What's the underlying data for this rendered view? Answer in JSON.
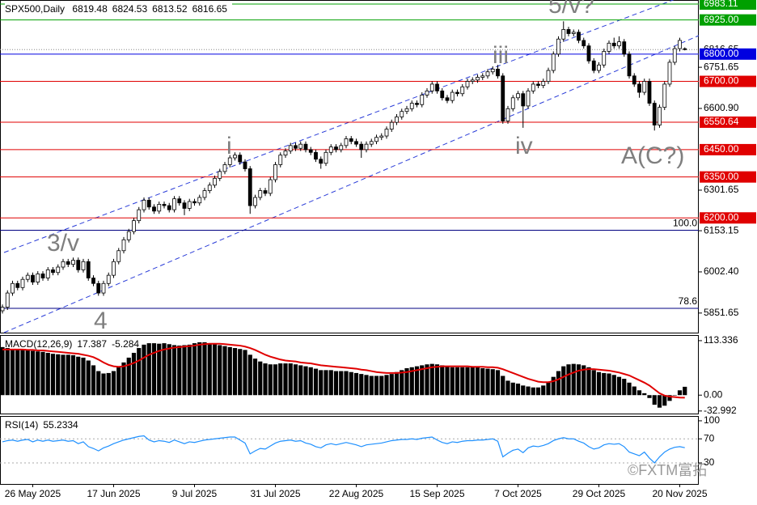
{
  "chart_data": {
    "type": "candlestick",
    "symbol": "SPX500,Daily",
    "up_color": "#ffffff",
    "down_color": "#000000",
    "outline_color": "#000000",
    "categories": [
      null,
      null,
      null,
      null,
      null,
      null,
      "26 May 2025",
      null,
      null,
      null,
      null,
      null,
      null,
      null,
      null,
      null,
      null,
      null,
      null,
      null,
      null,
      null,
      "17 Jun 2025",
      null,
      null,
      null,
      null,
      null,
      null,
      null,
      null,
      null,
      null,
      null,
      null,
      null,
      null,
      null,
      "9 Jul 2025",
      null,
      null,
      null,
      null,
      null,
      null,
      null,
      null,
      null,
      null,
      null,
      null,
      null,
      null,
      null,
      "31 Jul 2025",
      null,
      null,
      null,
      null,
      null,
      null,
      null,
      null,
      null,
      null,
      null,
      null,
      null,
      null,
      null,
      "22 Aug 2025",
      null,
      null,
      null,
      null,
      null,
      null,
      null,
      null,
      null,
      null,
      null,
      null,
      null,
      null,
      null,
      "15 Sep 2025",
      null,
      null,
      null,
      null,
      null,
      null,
      null,
      null,
      null,
      null,
      null,
      null,
      null,
      null,
      null,
      "7 Oct 2025",
      null,
      null,
      null,
      null,
      null,
      null,
      null,
      null,
      null,
      null,
      null,
      null,
      null,
      null,
      null,
      "29 Oct 2025",
      null,
      null,
      null,
      null,
      null,
      null,
      null,
      null,
      null,
      null,
      null,
      null,
      null,
      null,
      null,
      "20 Nov 2025",
      null
    ],
    "open": [
      5860,
      5873,
      5925,
      5960,
      5945,
      5975,
      5990,
      5965,
      5995,
      5980,
      6010,
      6000,
      6020,
      6040,
      6030,
      6045,
      6010,
      6040,
      5980,
      5960,
      5925,
      5960,
      5990,
      6040,
      6080,
      6120,
      6150,
      6190,
      6230,
      6265,
      6240,
      6225,
      6250,
      6245,
      6230,
      6270,
      6255,
      6235,
      6260,
      6255,
      6275,
      6300,
      6320,
      6345,
      6370,
      6395,
      6420,
      6430,
      6405,
      6380,
      6245,
      6275,
      6300,
      6290,
      6340,
      6395,
      6430,
      6445,
      6465,
      6455,
      6470,
      6450,
      6440,
      6415,
      6400,
      6440,
      6460,
      6450,
      6465,
      6490,
      6480,
      6470,
      6450,
      6470,
      6480,
      6495,
      6500,
      6525,
      6550,
      6570,
      6590,
      6600,
      6620,
      6615,
      6650,
      6665,
      6690,
      6665,
      6640,
      6630,
      6660,
      6655,
      6680,
      6700,
      6705,
      6715,
      6720,
      6735,
      6745,
      6720,
      6555,
      6600,
      6640,
      6655,
      6610,
      6665,
      6690,
      6685,
      6700,
      6740,
      6800,
      6855,
      6890,
      6875,
      6880,
      6850,
      6830,
      6775,
      6740,
      6760,
      6810,
      6840,
      6830,
      6845,
      6800,
      6720,
      6690,
      6660,
      6700,
      6620,
      6540,
      6605,
      6690,
      6770,
      6820,
      6819.48
    ],
    "high": [
      5883,
      5935,
      5970,
      5970,
      5985,
      6000,
      6000,
      6005,
      6005,
      6020,
      6020,
      6030,
      6050,
      6050,
      6055,
      6055,
      6050,
      6050,
      5990,
      5970,
      5970,
      6000,
      6050,
      6090,
      6130,
      6160,
      6200,
      6240,
      6275,
      6275,
      6250,
      6260,
      6260,
      6255,
      6280,
      6280,
      6265,
      6270,
      6270,
      6285,
      6310,
      6330,
      6355,
      6380,
      6405,
      6430,
      6440,
      6440,
      6415,
      6390,
      6285,
      6310,
      6310,
      6350,
      6405,
      6440,
      6455,
      6475,
      6475,
      6480,
      6480,
      6460,
      6450,
      6425,
      6450,
      6470,
      6470,
      6475,
      6500,
      6500,
      6490,
      6480,
      6480,
      6490,
      6505,
      6510,
      6535,
      6560,
      6580,
      6600,
      6610,
      6630,
      6630,
      6660,
      6675,
      6700,
      6700,
      6675,
      6650,
      6670,
      6670,
      6690,
      6710,
      6715,
      6725,
      6730,
      6745,
      6755,
      6760,
      6730,
      6610,
      6650,
      6665,
      6665,
      6675,
      6700,
      6700,
      6710,
      6750,
      6810,
      6865,
      6920,
      6900,
      6890,
      6890,
      6860,
      6840,
      6785,
      6770,
      6820,
      6850,
      6860,
      6865,
      6855,
      6810,
      6730,
      6700,
      6710,
      6710,
      6630,
      6615,
      6700,
      6780,
      6830,
      6860,
      6824.53
    ],
    "low": [
      5850,
      5863,
      5915,
      5935,
      5935,
      5965,
      5955,
      5955,
      5970,
      5970,
      5990,
      5990,
      6010,
      6020,
      6020,
      6000,
      6000,
      5970,
      5950,
      5915,
      5915,
      5950,
      5980,
      6030,
      6070,
      6110,
      6140,
      6180,
      6220,
      6230,
      6215,
      6215,
      6235,
      6220,
      6220,
      6245,
      6210,
      6225,
      6245,
      6245,
      6265,
      6290,
      6310,
      6335,
      6360,
      6385,
      6410,
      6395,
      6370,
      6215,
      6235,
      6265,
      6280,
      6280,
      6330,
      6385,
      6420,
      6435,
      6445,
      6445,
      6440,
      6430,
      6405,
      6380,
      6390,
      6430,
      6440,
      6440,
      6455,
      6470,
      6460,
      6420,
      6440,
      6460,
      6470,
      6485,
      6490,
      6515,
      6540,
      6560,
      6580,
      6590,
      6605,
      6605,
      6640,
      6655,
      6655,
      6630,
      6620,
      6620,
      6645,
      6645,
      6670,
      6690,
      6695,
      6705,
      6710,
      6725,
      6710,
      6545,
      6545,
      6590,
      6630,
      6530,
      6600,
      6655,
      6675,
      6675,
      6690,
      6730,
      6790,
      6845,
      6865,
      6865,
      6840,
      6820,
      6765,
      6730,
      6730,
      6750,
      6800,
      6820,
      6820,
      6790,
      6710,
      6680,
      6640,
      6650,
      6610,
      6520,
      6530,
      6595,
      6680,
      6760,
      6810,
      6813.52
    ],
    "close": [
      5873,
      5925,
      5960,
      5945,
      5975,
      5990,
      5965,
      5995,
      5980,
      6010,
      6000,
      6020,
      6040,
      6030,
      6045,
      6010,
      6040,
      5980,
      5960,
      5925,
      5960,
      5990,
      6040,
      6080,
      6120,
      6150,
      6190,
      6230,
      6265,
      6240,
      6225,
      6250,
      6245,
      6230,
      6270,
      6255,
      6235,
      6260,
      6255,
      6275,
      6300,
      6320,
      6345,
      6370,
      6395,
      6420,
      6430,
      6405,
      6380,
      6245,
      6275,
      6300,
      6290,
      6340,
      6395,
      6430,
      6445,
      6465,
      6455,
      6470,
      6450,
      6440,
      6415,
      6400,
      6440,
      6460,
      6450,
      6465,
      6490,
      6480,
      6470,
      6450,
      6470,
      6480,
      6495,
      6500,
      6525,
      6550,
      6570,
      6590,
      6600,
      6620,
      6615,
      6650,
      6665,
      6690,
      6665,
      6640,
      6630,
      6660,
      6655,
      6680,
      6700,
      6705,
      6715,
      6720,
      6735,
      6745,
      6720,
      6555,
      6600,
      6640,
      6655,
      6610,
      6665,
      6690,
      6685,
      6700,
      6740,
      6800,
      6855,
      6890,
      6875,
      6880,
      6850,
      6830,
      6775,
      6740,
      6760,
      6810,
      6840,
      6830,
      6845,
      6800,
      6720,
      6690,
      6660,
      6700,
      6620,
      6540,
      6605,
      6690,
      6770,
      6820,
      6850,
      6816.65
    ],
    "ylim": [
      5780,
      6998
    ],
    "yticks": [
      {
        "value": 5851.65,
        "label": "5851.65"
      },
      {
        "value": 6002.4,
        "label": "6002.40"
      },
      {
        "value": 6153.15,
        "label": "6153.15"
      },
      {
        "value": 6301.65,
        "label": "6301.65"
      },
      {
        "value": 6600.9,
        "label": "6600.90"
      },
      {
        "value": 6751.65,
        "label": "6751.65"
      }
    ],
    "levels": [
      {
        "value": 6983.11,
        "label": "6983.11",
        "color": "#00a000"
      },
      {
        "value": 6925,
        "label": "6925.00",
        "color": "#00a000"
      },
      {
        "value": 6800,
        "label": "6800.00",
        "color": "#0000e0"
      },
      {
        "value": 6700,
        "label": "6700.00",
        "color": "#e00000"
      },
      {
        "value": 6550.64,
        "label": "6550.64",
        "color": "#e00000"
      },
      {
        "value": 6450,
        "label": "6450.00",
        "color": "#e00000"
      },
      {
        "value": 6350,
        "label": "6350.00",
        "color": "#e00000"
      },
      {
        "value": 6200,
        "label": "6200.00",
        "color": "#e00000"
      }
    ],
    "fib": [
      {
        "value": 6155,
        "label": "100.0"
      },
      {
        "value": 5869,
        "label": "78.6"
      }
    ],
    "fib_color": "#000080",
    "waves": [
      "3/v",
      "4",
      "i",
      "iii",
      "iv",
      "5/v?",
      "A(C?)"
    ],
    "macd": {
      "label": "MACD(12,26,9)",
      "color": "#000000",
      "signal_color": "#e00000",
      "histogram": [
        100,
        98,
        96,
        95,
        94,
        93,
        92,
        91,
        90,
        88,
        86,
        85,
        84,
        84,
        83,
        80,
        78,
        72,
        62,
        50,
        45,
        46,
        50,
        58,
        68,
        78,
        88,
        98,
        105,
        108,
        108,
        107,
        108,
        106,
        104,
        103,
        104,
        105,
        108,
        110,
        110,
        108,
        106,
        104,
        102,
        100,
        98,
        96,
        94,
        84,
        76,
        70,
        66,
        64,
        64,
        66,
        66,
        66,
        64,
        62,
        60,
        58,
        55,
        52,
        52,
        52,
        50,
        50,
        50,
        48,
        46,
        44,
        42,
        40,
        40,
        40,
        42,
        44,
        48,
        52,
        56,
        58,
        60,
        62,
        64,
        65,
        64,
        62,
        60,
        58,
        58,
        58,
        58,
        58,
        58,
        56,
        55,
        54,
        52,
        40,
        30,
        26,
        24,
        20,
        18,
        16,
        16,
        20,
        28,
        38,
        50,
        60,
        64,
        65,
        64,
        62,
        58,
        52,
        48,
        46,
        45,
        42,
        38,
        34,
        26,
        18,
        10,
        4,
        -6,
        -20,
        -26,
        -22,
        -12,
        0,
        10,
        17.387
      ],
      "signal": [
        95,
        95,
        95,
        95,
        95,
        94,
        94,
        93,
        93,
        92,
        91,
        90,
        89,
        88,
        87,
        86,
        84,
        82,
        79,
        74,
        68,
        63,
        60,
        59,
        60,
        63,
        67,
        72,
        78,
        84,
        88,
        92,
        95,
        97,
        99,
        100,
        101,
        102,
        103,
        105,
        106,
        107,
        107,
        107,
        106,
        105,
        104,
        103,
        101,
        98,
        94,
        89,
        84,
        80,
        77,
        74,
        72,
        71,
        70,
        68,
        67,
        66,
        64,
        62,
        61,
        60,
        59,
        58,
        57,
        56,
        55,
        53,
        52,
        50,
        48,
        47,
        46,
        46,
        46,
        47,
        48,
        50,
        52,
        54,
        56,
        58,
        59,
        60,
        60,
        60,
        60,
        60,
        60,
        59,
        59,
        59,
        58,
        58,
        57,
        54,
        50,
        46,
        42,
        38,
        34,
        31,
        28,
        27,
        27,
        29,
        33,
        38,
        43,
        47,
        51,
        53,
        54,
        54,
        53,
        52,
        51,
        49,
        47,
        44,
        41,
        36,
        31,
        26,
        20,
        12,
        4,
        -1,
        -3,
        -4,
        -5,
        -5.284
      ],
      "ylim": [
        -40,
        125
      ],
      "yticks": [
        {
          "value": -32.992,
          "label": "-32.992"
        },
        {
          "value": 0,
          "label": "0.00"
        },
        113.336
      ]
    },
    "rsi": {
      "label": "RSI(14)",
      "color": "#1e90ff",
      "values": [
        65,
        67,
        68,
        66,
        68,
        69,
        65,
        68,
        66,
        68,
        66,
        67,
        68,
        66,
        67,
        62,
        65,
        57,
        54,
        50,
        55,
        58,
        62,
        65,
        68,
        70,
        72,
        74,
        75,
        68,
        65,
        67,
        66,
        64,
        68,
        65,
        62,
        65,
        64,
        66,
        68,
        69,
        70,
        71,
        72,
        73,
        73,
        68,
        63,
        45,
        50,
        54,
        53,
        58,
        63,
        66,
        67,
        68,
        66,
        67,
        63,
        61,
        57,
        55,
        60,
        62,
        60,
        62,
        64,
        62,
        60,
        57,
        60,
        61,
        62,
        63,
        65,
        67,
        68,
        69,
        69,
        70,
        69,
        71,
        72,
        73,
        68,
        64,
        62,
        65,
        64,
        66,
        67,
        67,
        68,
        68,
        69,
        70,
        66,
        40,
        46,
        51,
        53,
        47,
        55,
        58,
        57,
        59,
        62,
        67,
        70,
        72,
        70,
        70,
        66,
        63,
        57,
        53,
        55,
        60,
        62,
        61,
        62,
        57,
        48,
        45,
        42,
        48,
        38,
        30,
        40,
        48,
        53,
        56,
        57,
        55.2334
      ],
      "ylim": [
        -5,
        108
      ],
      "yticks": [
        30,
        70,
        100
      ],
      "grid_levels": [
        30,
        70
      ]
    },
    "watermark": "©FXTM富拓"
  }
}
